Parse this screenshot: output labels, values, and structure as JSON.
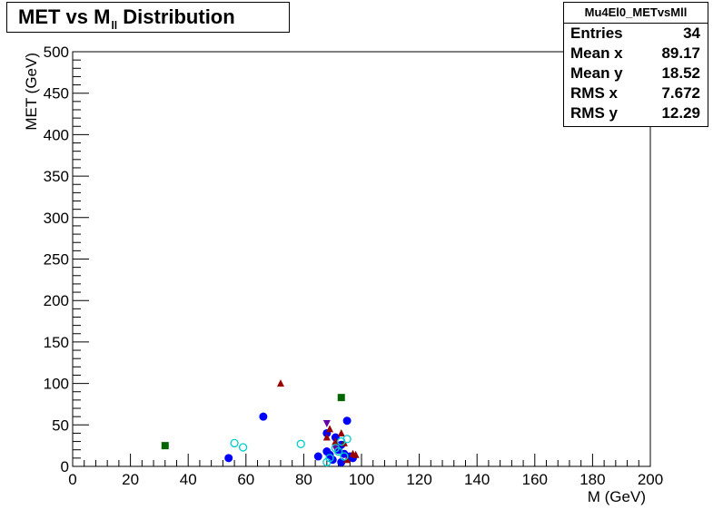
{
  "title": {
    "main": "MET vs M",
    "sub": "ll",
    "rest": " Distribution"
  },
  "stats": {
    "name": "Mu4El0_METvsMll",
    "rows": [
      {
        "label": "Entries",
        "value": "34"
      },
      {
        "label": "Mean x",
        "value": "89.17"
      },
      {
        "label": "Mean y",
        "value": "18.52"
      },
      {
        "label": "RMS x",
        "value": "7.672"
      },
      {
        "label": "RMS y",
        "value": "12.29"
      }
    ]
  },
  "chart_data": {
    "type": "scatter",
    "xlabel": "M (GeV)",
    "ylabel": "MET (GeV)",
    "xlim": [
      0,
      200
    ],
    "ylim": [
      0,
      500
    ],
    "xticks": [
      0,
      20,
      40,
      60,
      80,
      100,
      120,
      140,
      160,
      180,
      200
    ],
    "yticks": [
      0,
      50,
      100,
      150,
      200,
      250,
      300,
      350,
      400,
      450,
      500
    ],
    "series": [
      {
        "marker": "filled-circle",
        "color": "#0000ff",
        "points": [
          [
            54,
            10
          ],
          [
            66,
            60
          ],
          [
            85,
            12
          ],
          [
            88,
            40
          ],
          [
            88,
            18
          ],
          [
            89,
            14
          ],
          [
            90,
            8
          ],
          [
            91,
            35
          ],
          [
            92,
            20
          ],
          [
            93,
            5
          ],
          [
            93,
            26
          ],
          [
            94,
            15
          ],
          [
            95,
            55
          ],
          [
            96,
            12
          ],
          [
            97,
            10
          ]
        ]
      },
      {
        "marker": "filled-triangle-up",
        "color": "#990000",
        "points": [
          [
            72,
            100
          ],
          [
            88,
            35
          ],
          [
            89,
            45
          ],
          [
            91,
            30
          ],
          [
            93,
            40
          ],
          [
            94,
            28
          ],
          [
            97,
            15
          ],
          [
            98,
            14
          ],
          [
            95,
            8
          ]
        ]
      },
      {
        "marker": "filled-triangle-down",
        "color": "#6600aa",
        "points": [
          [
            88,
            52
          ],
          [
            91,
            22
          ]
        ]
      },
      {
        "marker": "filled-square",
        "color": "#006600",
        "points": [
          [
            32,
            25
          ],
          [
            93,
            83
          ]
        ]
      },
      {
        "marker": "open-circle",
        "color": "#00cccc",
        "points": [
          [
            56,
            28
          ],
          [
            59,
            23
          ],
          [
            79,
            27
          ],
          [
            88,
            5
          ],
          [
            89,
            10
          ],
          [
            91,
            22
          ],
          [
            92,
            18
          ],
          [
            93,
            30
          ],
          [
            95,
            33
          ],
          [
            94,
            12
          ]
        ]
      }
    ]
  }
}
